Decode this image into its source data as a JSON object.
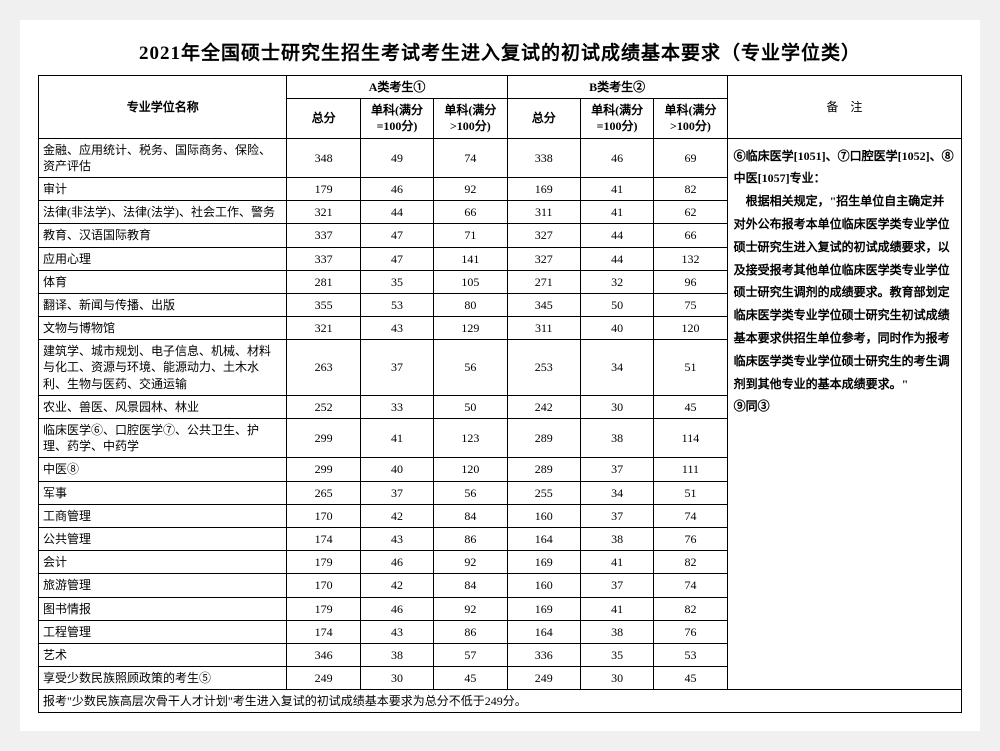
{
  "title": "2021年全国硕士研究生招生考试考生进入复试的初试成绩基本要求（专业学位类）",
  "header": {
    "major_col": "专业学位名称",
    "group_a": "A类考生①",
    "group_b": "B类考生②",
    "notes_col": "备　注",
    "total": "总分",
    "sub100": "单科(满分=100分)",
    "over100": "单科(满分>100分)"
  },
  "notes_text": "⑥临床医学[1051]、⑦口腔医学[1052]、⑧中医[1057]专业：\n　根据相关规定，\"招生单位自主确定并对外公布报考本单位临床医学类专业学位硕士研究生进入复试的初试成绩要求，以及接受报考其他单位临床医学类专业学位硕士研究生调剂的成绩要求。教育部划定临床医学类专业学位硕士研究生初试成绩基本要求供招生单位参考，同时作为报考临床医学类专业学位硕士研究生的考生调剂到其他专业的基本成绩要求。\"\n⑨同③",
  "footnote": "报考\"少数民族高层次骨干人才计划\"考生进入复试的初试成绩基本要求为总分不低于249分。",
  "rows": [
    {
      "major": "金融、应用统计、税务、国际商务、保险、资产评估",
      "a": [
        348,
        49,
        74
      ],
      "b": [
        338,
        46,
        69
      ]
    },
    {
      "major": "审计",
      "a": [
        179,
        46,
        92
      ],
      "b": [
        169,
        41,
        82
      ]
    },
    {
      "major": "法律(非法学)、法律(法学)、社会工作、警务",
      "a": [
        321,
        44,
        66
      ],
      "b": [
        311,
        41,
        62
      ]
    },
    {
      "major": "教育、汉语国际教育",
      "a": [
        337,
        47,
        71
      ],
      "b": [
        327,
        44,
        66
      ]
    },
    {
      "major": "应用心理",
      "a": [
        337,
        47,
        141
      ],
      "b": [
        327,
        44,
        132
      ]
    },
    {
      "major": "体育",
      "a": [
        281,
        35,
        105
      ],
      "b": [
        271,
        32,
        96
      ]
    },
    {
      "major": "翻译、新闻与传播、出版",
      "a": [
        355,
        53,
        80
      ],
      "b": [
        345,
        50,
        75
      ]
    },
    {
      "major": "文物与博物馆",
      "a": [
        321,
        43,
        129
      ],
      "b": [
        311,
        40,
        120
      ]
    },
    {
      "major": "建筑学、城市规划、电子信息、机械、材料与化工、资源与环境、能源动力、土木水利、生物与医药、交通运输",
      "a": [
        263,
        37,
        56
      ],
      "b": [
        253,
        34,
        51
      ]
    },
    {
      "major": "农业、兽医、风景园林、林业",
      "a": [
        252,
        33,
        50
      ],
      "b": [
        242,
        30,
        45
      ]
    },
    {
      "major": "临床医学⑥、口腔医学⑦、公共卫生、护理、药学、中药学",
      "a": [
        299,
        41,
        123
      ],
      "b": [
        289,
        38,
        114
      ]
    },
    {
      "major": "中医⑧",
      "a": [
        299,
        40,
        120
      ],
      "b": [
        289,
        37,
        111
      ]
    },
    {
      "major": "军事",
      "a": [
        265,
        37,
        56
      ],
      "b": [
        255,
        34,
        51
      ]
    },
    {
      "major": "工商管理",
      "a": [
        170,
        42,
        84
      ],
      "b": [
        160,
        37,
        74
      ]
    },
    {
      "major": "公共管理",
      "a": [
        174,
        43,
        86
      ],
      "b": [
        164,
        38,
        76
      ]
    },
    {
      "major": "会计",
      "a": [
        179,
        46,
        92
      ],
      "b": [
        169,
        41,
        82
      ]
    },
    {
      "major": "旅游管理",
      "a": [
        170,
        42,
        84
      ],
      "b": [
        160,
        37,
        74
      ]
    },
    {
      "major": "图书情报",
      "a": [
        179,
        46,
        92
      ],
      "b": [
        169,
        41,
        82
      ]
    },
    {
      "major": "工程管理",
      "a": [
        174,
        43,
        86
      ],
      "b": [
        164,
        38,
        76
      ]
    },
    {
      "major": "艺术",
      "a": [
        346,
        38,
        57
      ],
      "b": [
        336,
        35,
        53
      ]
    },
    {
      "major": "享受少数民族照顾政策的考生⑤",
      "a": [
        249,
        30,
        45
      ],
      "b": [
        249,
        30,
        45
      ]
    }
  ]
}
